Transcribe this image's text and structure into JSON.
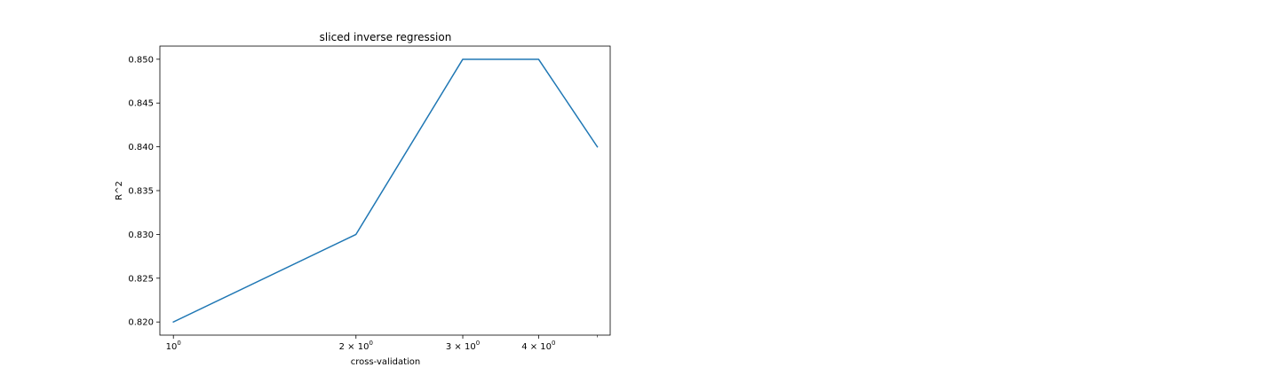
{
  "chart_data": {
    "type": "line",
    "title": "sliced inverse regression",
    "xlabel": "cross-validation",
    "ylabel": "R^2",
    "xscale": "log",
    "x": [
      1,
      2,
      3,
      4,
      5
    ],
    "series": [
      {
        "values": [
          0.82,
          0.83,
          0.85,
          0.85,
          0.84
        ],
        "color": "#1f77b4"
      }
    ],
    "xlim": [
      0.95,
      5.25
    ],
    "ylim": [
      0.8185,
      0.8515
    ],
    "x_ticks": [
      {
        "value": 1,
        "base": "10",
        "exp": "0"
      },
      {
        "value": 2,
        "base": "2 × 10",
        "exp": "0"
      },
      {
        "value": 3,
        "base": "3 × 10",
        "exp": "0"
      },
      {
        "value": 4,
        "base": "4 × 10",
        "exp": "0"
      }
    ],
    "x_minor_ticks": [
      5
    ],
    "y_ticks": [
      {
        "value": 0.82,
        "label": "0.820"
      },
      {
        "value": 0.825,
        "label": "0.825"
      },
      {
        "value": 0.83,
        "label": "0.830"
      },
      {
        "value": 0.835,
        "label": "0.835"
      },
      {
        "value": 0.84,
        "label": "0.840"
      },
      {
        "value": 0.845,
        "label": "0.845"
      },
      {
        "value": 0.85,
        "label": "0.850"
      }
    ],
    "grid": false,
    "legend": "none"
  }
}
